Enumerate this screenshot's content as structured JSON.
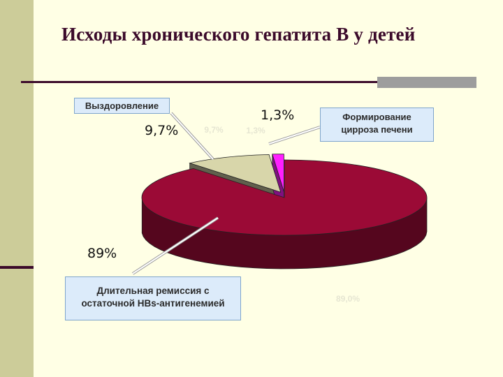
{
  "title": "Исходы хронического гепатита В у детей",
  "chart_data": {
    "type": "pie",
    "slices": [
      {
        "label": "Выздоровление",
        "value": 9.7,
        "display": "9,7%",
        "color": "#D8D6AA"
      },
      {
        "label": "Формирование цирроза печени",
        "value": 1.3,
        "display": "1,3%",
        "color": "#FF1FFF"
      },
      {
        "label": "Длительная ремиссия с остаточной HBs-антигенемией",
        "value": 89,
        "display": "89%",
        "color": "#9B0A36"
      }
    ],
    "faint_labels": [
      "9,7%",
      "1,3%",
      "89,0%"
    ]
  },
  "callouts": {
    "recovery": "Выздоровление",
    "cirrhosis_line1": "Формирование",
    "cirrhosis_line2": "цирроза печени",
    "remission_line1": "Длительная ремиссия с",
    "remission_line2": "остаточной HBs-антигенемией"
  },
  "colors": {
    "background": "#FFFFE5",
    "sidebar": "#CCCC99",
    "accent": "#3B0A2A",
    "callout_fill": "#DCEBFA"
  }
}
